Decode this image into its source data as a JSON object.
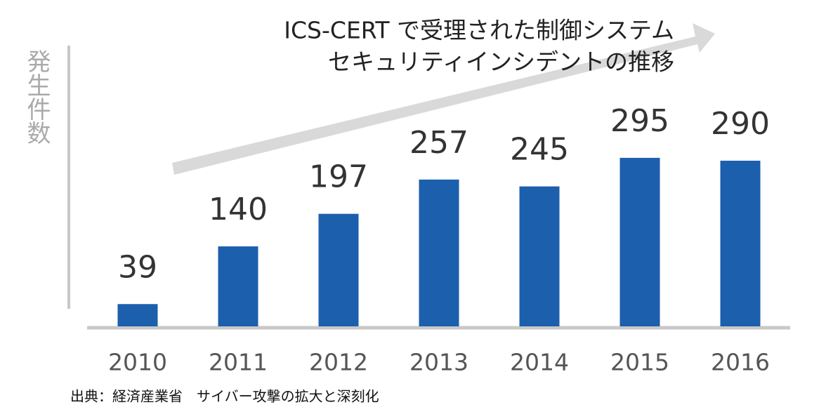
{
  "chart_data": {
    "type": "bar",
    "title": [
      "ICS-CERT で受理された制御システム",
      "セキュリティインシデントの推移"
    ],
    "y_label": "発生件数",
    "source": "出典：経済産業省　サイバー攻撃の拡大と深刻化",
    "categories": [
      "2010",
      "2011",
      "2012",
      "2013",
      "2014",
      "2015",
      "2016"
    ],
    "values": [
      39,
      140,
      197,
      257,
      245,
      295,
      290
    ],
    "color": "#1c5fad",
    "ylim": [
      0,
      360
    ]
  }
}
